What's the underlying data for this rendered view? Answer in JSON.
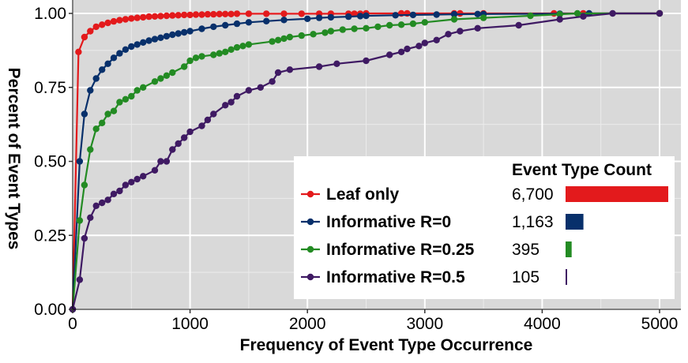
{
  "chart_data": {
    "type": "line",
    "xlabel": "Frequency of Event Type Occurrence",
    "ylabel": "Percent of Event Types",
    "xlim": [
      0,
      5000
    ],
    "ylim": [
      0,
      1
    ],
    "x_ticks": [
      "0",
      "1000",
      "2000",
      "3000",
      "4000",
      "5000"
    ],
    "y_ticks": [
      "0.00",
      "0.25",
      "0.50",
      "0.75",
      "1.00"
    ],
    "grid": true,
    "legend_position": "bottom-right",
    "count_header": "Event Type Count",
    "series": [
      {
        "name": "Leaf only",
        "color": "#e31a1c",
        "count": 6700,
        "count_label": "6,700",
        "points": [
          [
            0,
            0
          ],
          [
            50,
            0.87
          ],
          [
            100,
            0.92
          ],
          [
            150,
            0.94
          ],
          [
            200,
            0.955
          ],
          [
            250,
            0.962
          ],
          [
            300,
            0.968
          ],
          [
            350,
            0.973
          ],
          [
            400,
            0.977
          ],
          [
            450,
            0.98
          ],
          [
            500,
            0.983
          ],
          [
            550,
            0.985
          ],
          [
            600,
            0.987
          ],
          [
            650,
            0.989
          ],
          [
            700,
            0.99
          ],
          [
            750,
            0.991
          ],
          [
            800,
            0.992
          ],
          [
            850,
            0.993
          ],
          [
            900,
            0.994
          ],
          [
            950,
            0.995
          ],
          [
            1000,
            0.995
          ],
          [
            1050,
            0.996
          ],
          [
            1100,
            0.996
          ],
          [
            1150,
            0.997
          ],
          [
            1200,
            0.997
          ],
          [
            1250,
            0.998
          ],
          [
            1300,
            0.998
          ],
          [
            1350,
            0.998
          ],
          [
            1400,
            0.999
          ],
          [
            1500,
            0.999
          ],
          [
            1650,
            0.999
          ],
          [
            1800,
            0.999
          ],
          [
            1950,
            0.999
          ],
          [
            2100,
            0.999
          ],
          [
            2200,
            0.999
          ],
          [
            2350,
            0.999
          ],
          [
            2400,
            0.999
          ],
          [
            2450,
            0.999
          ],
          [
            2500,
            1.0
          ],
          [
            2800,
            1.0
          ],
          [
            2850,
            1.0
          ],
          [
            3250,
            1.0
          ],
          [
            3300,
            1.0
          ],
          [
            3500,
            1.0
          ],
          [
            4100,
            1.0
          ],
          [
            4350,
            1.0
          ],
          [
            5000,
            1.0
          ]
        ]
      },
      {
        "name": "Informative R=0",
        "color": "#08306b",
        "count": 1163,
        "count_label": "1,163",
        "points": [
          [
            0,
            0
          ],
          [
            60,
            0.5
          ],
          [
            100,
            0.66
          ],
          [
            150,
            0.74
          ],
          [
            200,
            0.78
          ],
          [
            250,
            0.81
          ],
          [
            300,
            0.83
          ],
          [
            350,
            0.85
          ],
          [
            400,
            0.865
          ],
          [
            450,
            0.878
          ],
          [
            500,
            0.888
          ],
          [
            550,
            0.895
          ],
          [
            600,
            0.902
          ],
          [
            650,
            0.908
          ],
          [
            700,
            0.913
          ],
          [
            750,
            0.918
          ],
          [
            800,
            0.923
          ],
          [
            850,
            0.928
          ],
          [
            900,
            0.932
          ],
          [
            950,
            0.936
          ],
          [
            1000,
            0.94
          ],
          [
            1100,
            0.948
          ],
          [
            1200,
            0.955
          ],
          [
            1300,
            0.96
          ],
          [
            1400,
            0.965
          ],
          [
            1500,
            0.97
          ],
          [
            1650,
            0.974
          ],
          [
            1800,
            0.978
          ],
          [
            2000,
            0.982
          ],
          [
            2100,
            0.985
          ],
          [
            2200,
            0.987
          ],
          [
            2350,
            0.989
          ],
          [
            2450,
            0.991
          ],
          [
            2500,
            0.992
          ],
          [
            2750,
            0.994
          ],
          [
            2900,
            0.995
          ],
          [
            3100,
            0.996
          ],
          [
            3250,
            0.997
          ],
          [
            3450,
            0.998
          ],
          [
            3500,
            0.998
          ],
          [
            4150,
            0.999
          ],
          [
            4400,
            1.0
          ],
          [
            5000,
            1.0
          ]
        ]
      },
      {
        "name": "Informative R=0.25",
        "color": "#238b23",
        "count": 395,
        "count_label": "395",
        "points": [
          [
            0,
            0
          ],
          [
            60,
            0.3
          ],
          [
            100,
            0.42
          ],
          [
            150,
            0.54
          ],
          [
            200,
            0.61
          ],
          [
            250,
            0.63
          ],
          [
            300,
            0.66
          ],
          [
            350,
            0.67
          ],
          [
            400,
            0.7
          ],
          [
            450,
            0.71
          ],
          [
            500,
            0.72
          ],
          [
            550,
            0.74
          ],
          [
            600,
            0.75
          ],
          [
            700,
            0.77
          ],
          [
            750,
            0.78
          ],
          [
            800,
            0.79
          ],
          [
            850,
            0.8
          ],
          [
            950,
            0.82
          ],
          [
            1000,
            0.84
          ],
          [
            1050,
            0.85
          ],
          [
            1100,
            0.855
          ],
          [
            1200,
            0.86
          ],
          [
            1250,
            0.865
          ],
          [
            1300,
            0.87
          ],
          [
            1350,
            0.878
          ],
          [
            1400,
            0.885
          ],
          [
            1450,
            0.89
          ],
          [
            1500,
            0.895
          ],
          [
            1700,
            0.905
          ],
          [
            1750,
            0.91
          ],
          [
            1800,
            0.915
          ],
          [
            1850,
            0.92
          ],
          [
            1950,
            0.925
          ],
          [
            2050,
            0.93
          ],
          [
            2150,
            0.935
          ],
          [
            2200,
            0.94
          ],
          [
            2300,
            0.945
          ],
          [
            2400,
            0.948
          ],
          [
            2500,
            0.95
          ],
          [
            2600,
            0.955
          ],
          [
            2700,
            0.96
          ],
          [
            2800,
            0.962
          ],
          [
            2900,
            0.965
          ],
          [
            3000,
            0.97
          ],
          [
            3250,
            0.98
          ],
          [
            3500,
            0.985
          ],
          [
            3900,
            0.992
          ],
          [
            4150,
            0.997
          ],
          [
            4300,
            1.0
          ],
          [
            5000,
            1.0
          ]
        ]
      },
      {
        "name": "Informative R=0.5",
        "color": "#3f1a63",
        "count": 105,
        "count_label": "105",
        "points": [
          [
            0,
            0
          ],
          [
            60,
            0.1
          ],
          [
            100,
            0.24
          ],
          [
            150,
            0.31
          ],
          [
            200,
            0.35
          ],
          [
            250,
            0.36
          ],
          [
            300,
            0.37
          ],
          [
            350,
            0.39
          ],
          [
            400,
            0.4
          ],
          [
            450,
            0.42
          ],
          [
            500,
            0.43
          ],
          [
            550,
            0.44
          ],
          [
            600,
            0.45
          ],
          [
            700,
            0.47
          ],
          [
            750,
            0.5
          ],
          [
            800,
            0.5
          ],
          [
            850,
            0.54
          ],
          [
            900,
            0.56
          ],
          [
            950,
            0.58
          ],
          [
            1000,
            0.6
          ],
          [
            1100,
            0.62
          ],
          [
            1150,
            0.64
          ],
          [
            1200,
            0.66
          ],
          [
            1300,
            0.69
          ],
          [
            1350,
            0.7
          ],
          [
            1400,
            0.72
          ],
          [
            1500,
            0.74
          ],
          [
            1600,
            0.75
          ],
          [
            1700,
            0.77
          ],
          [
            1750,
            0.8
          ],
          [
            1850,
            0.81
          ],
          [
            2100,
            0.82
          ],
          [
            2250,
            0.83
          ],
          [
            2500,
            0.84
          ],
          [
            2700,
            0.86
          ],
          [
            2800,
            0.87
          ],
          [
            2850,
            0.88
          ],
          [
            2950,
            0.89
          ],
          [
            3000,
            0.9
          ],
          [
            3100,
            0.91
          ],
          [
            3200,
            0.93
          ],
          [
            3300,
            0.94
          ],
          [
            3450,
            0.95
          ],
          [
            3800,
            0.96
          ],
          [
            4150,
            0.98
          ],
          [
            4350,
            0.99
          ],
          [
            4600,
            1.0
          ],
          [
            5000,
            1.0
          ]
        ]
      }
    ]
  }
}
